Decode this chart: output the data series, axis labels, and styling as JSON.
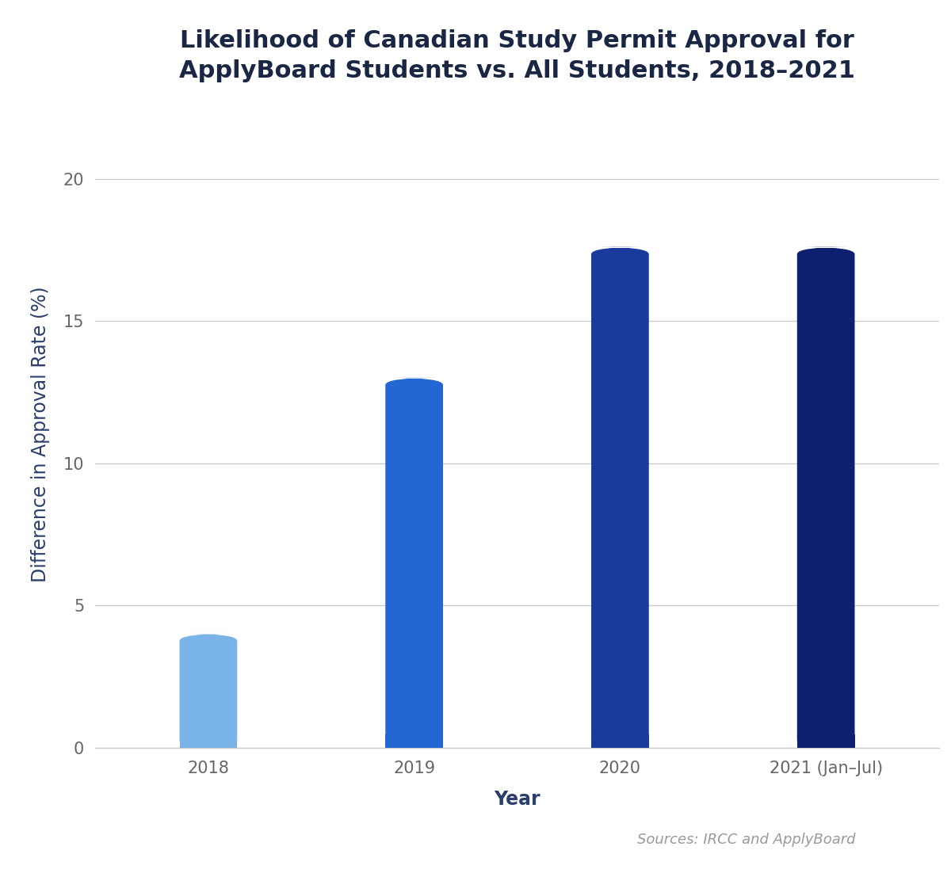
{
  "title": "Likelihood of Canadian Study Permit Approval for\nApplyBoard Students vs. All Students, 2018–2021",
  "categories": [
    "2018",
    "2019",
    "2020",
    "2021 (Jan–Jul)"
  ],
  "values": [
    4.0,
    13.0,
    17.6,
    17.6
  ],
  "bar_colors": [
    "#7ab3e8",
    "#2466d4",
    "#1a3a9e",
    "#0d1f6e"
  ],
  "xlabel": "Year",
  "ylabel": "Difference in Approval Rate (%)",
  "yticks": [
    0,
    5,
    10,
    15,
    20
  ],
  "ylim": [
    0,
    22
  ],
  "source_text": "Sources: IRCC and ApplyBoard",
  "background_color": "#ffffff",
  "title_color": "#1a2744",
  "axis_label_color": "#2c3e6b",
  "tick_color": "#666666",
  "grid_color": "#cccccc",
  "title_fontsize": 22,
  "label_fontsize": 17,
  "tick_fontsize": 15,
  "source_fontsize": 13,
  "bar_width": 0.28,
  "rounding_size": 0.25
}
